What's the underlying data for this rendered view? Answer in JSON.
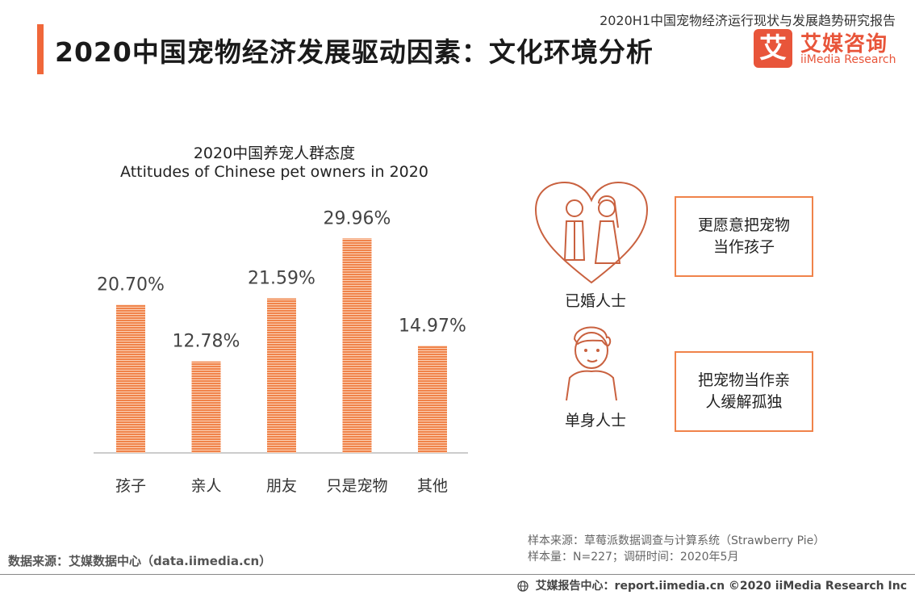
{
  "header": {
    "report_name": "2020H1中国宠物经济运行现状与发展趋势研究报告",
    "page_title": "2020中国宠物经济发展驱动因素：文化环境分析",
    "logo_glyph": "艾",
    "logo_cn": "艾媒咨询",
    "logo_en": "iiMedia Research"
  },
  "chart_data": {
    "type": "bar",
    "title": "2020中国养宠人群态度",
    "subtitle": "Attitudes of Chinese pet owners in 2020",
    "categories": [
      "孩子",
      "亲人",
      "朋友",
      "只是宠物",
      "其他"
    ],
    "values": [
      20.7,
      12.78,
      21.59,
      29.96,
      14.97
    ],
    "value_labels": [
      "20.70%",
      "12.78%",
      "21.59%",
      "29.96%",
      "14.97%"
    ],
    "unit": "%",
    "ylim": [
      0,
      30
    ],
    "grid": false,
    "bar_color": "#f0834a"
  },
  "side_panel": {
    "married_label": "已婚人士",
    "married_text": "更愿意把宠物当作孩子",
    "single_label": "单身人士",
    "single_text": "把宠物当作亲人缓解孤独"
  },
  "sources": {
    "left": "数据来源：艾媒数据中心（data.iimedia.cn）",
    "right_line1": "样本来源：草莓派数据调查与计算系统（Strawberry Pie）",
    "right_line2": "样本量：N=227；调研时间：2020年5月"
  },
  "footer": {
    "text": "艾媒报告中心：report.iimedia.cn   ©2020  iiMedia Research  Inc"
  },
  "colors": {
    "accent": "#f0673a",
    "brand": "#e8553a",
    "outline": "#c9613f"
  },
  "icons": [
    "heart-couple-icon",
    "single-person-icon",
    "globe-icon"
  ]
}
